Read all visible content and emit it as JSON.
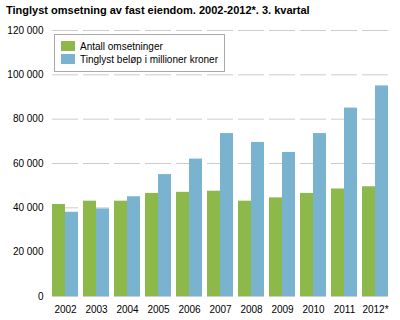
{
  "chart_data": {
    "type": "bar",
    "title": "Tinglyst omsetning av fast eiendom. 2002-2012*. 3. kvartal",
    "categories": [
      "2002",
      "2003",
      "2004",
      "2005",
      "2006",
      "2007",
      "2008",
      "2009",
      "2010",
      "2011",
      "2012*"
    ],
    "series": [
      {
        "name": "Antall omsetninger",
        "color": "#8db84a",
        "values": [
          41500,
          43000,
          43000,
          46500,
          47000,
          47500,
          43000,
          44500,
          46500,
          48500,
          49500
        ]
      },
      {
        "name": "Tinglyst beløp i millioner kroner",
        "color": "#7ab3d0",
        "values": [
          38000,
          39500,
          45000,
          55000,
          62000,
          73500,
          69500,
          65000,
          73500,
          85000,
          95000
        ]
      }
    ],
    "ylim": [
      0,
      120000
    ],
    "yticks": [
      0,
      {
        "value": 20000,
        "label": "20 000"
      },
      {
        "value": 40000,
        "label": "40 000"
      },
      {
        "value": 60000,
        "label": "60 000"
      },
      {
        "value": 80000,
        "label": "80 000"
      },
      {
        "value": 100000,
        "label": "100 000"
      },
      {
        "value": 120000,
        "label": "120 000"
      }
    ],
    "grid": true,
    "legend": "upper left"
  }
}
